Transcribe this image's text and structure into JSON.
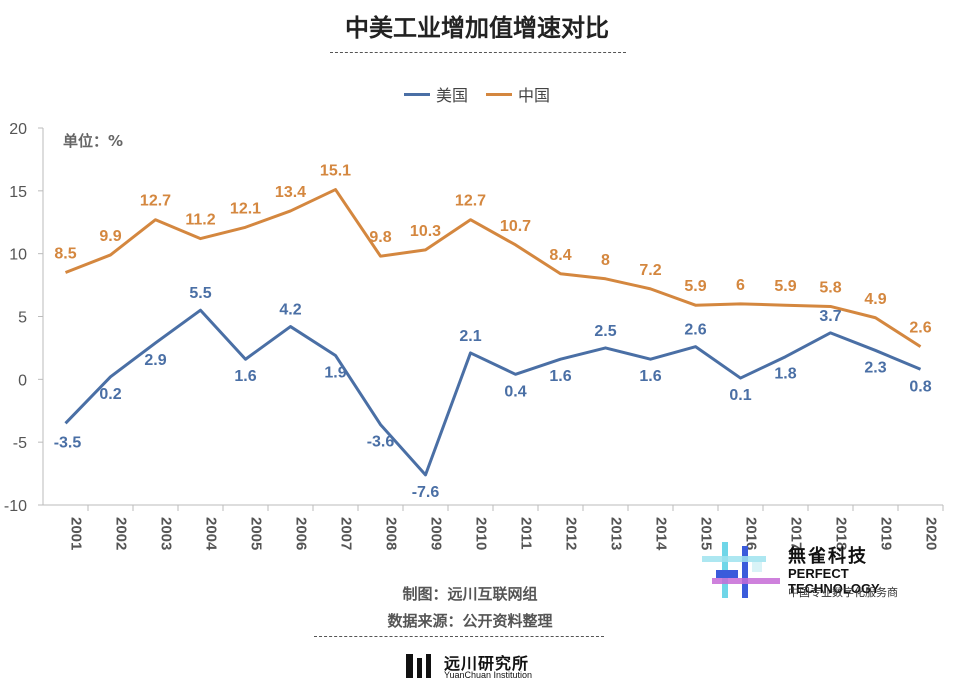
{
  "header": {
    "title": "中美工业增加值增速对比"
  },
  "unit_label": "单位：%",
  "credits": {
    "made_by": "制图：远川互联网组",
    "source": "数据来源：公开资料整理"
  },
  "brand": {
    "name_cn": "無雀科技",
    "name_en": "PERFECT TECHNOLOGY",
    "tagline": "中国专业数字化服务商"
  },
  "footer": {
    "name_cn": "远川研究所",
    "name_en": "YuanChuan Institution"
  },
  "chart_data": {
    "type": "line",
    "title": "中美工业增加值增速对比",
    "xlabel": "",
    "ylabel": "",
    "x": [
      "2001",
      "2002",
      "2003",
      "2004",
      "2005",
      "2006",
      "2007",
      "2008",
      "2009",
      "2010",
      "2011",
      "2012",
      "2013",
      "2014",
      "2015",
      "2016",
      "2017",
      "2018",
      "2019",
      "2020"
    ],
    "ylim": [
      -10,
      20
    ],
    "yticks": [
      -10,
      -5,
      0,
      5,
      10,
      15,
      20
    ],
    "grid": false,
    "legend_position": "top-center",
    "series": [
      {
        "name": "美国",
        "color": "#4a6fa5",
        "values": [
          -3.5,
          0.2,
          2.9,
          5.5,
          1.6,
          4.2,
          1.9,
          -3.6,
          -7.6,
          2.1,
          0.4,
          1.6,
          2.5,
          1.6,
          2.6,
          0.1,
          1.8,
          3.7,
          2.3,
          0.8
        ]
      },
      {
        "name": "中国",
        "color": "#d4873f",
        "values": [
          8.5,
          9.9,
          12.7,
          11.2,
          12.1,
          13.4,
          15.1,
          9.8,
          10.3,
          12.7,
          10.7,
          8.4,
          8,
          7.2,
          5.9,
          6,
          5.9,
          5.8,
          4.9,
          2.6
        ]
      }
    ]
  }
}
